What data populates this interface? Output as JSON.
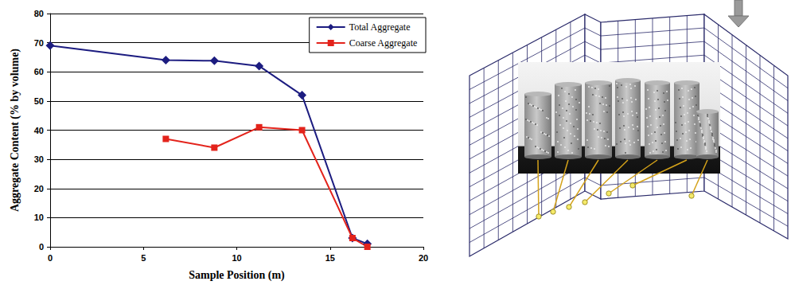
{
  "chart_data": {
    "type": "line",
    "x_label": "Sample Position (m)",
    "y_label": "Aggregate Content (% by volume)",
    "x": [
      0,
      6.2,
      8.8,
      11.2,
      13.5,
      16.2,
      17
    ],
    "series": [
      {
        "name": "Total Aggregate",
        "color": "#1c1c80",
        "marker": "diamond",
        "line_style": "solid",
        "values": [
          69,
          64,
          63.8,
          62,
          52,
          3,
          1
        ]
      },
      {
        "name": "Coarse Aggregate",
        "color": "#e3231b",
        "marker": "square",
        "line_style": "solid",
        "values": [
          null,
          37,
          34,
          41,
          40,
          3,
          0
        ]
      }
    ],
    "xlim": [
      0,
      20
    ],
    "xticks": [
      0,
      5,
      10,
      15,
      20
    ],
    "ylim": [
      0,
      80
    ],
    "yticks": [
      0,
      10,
      20,
      30,
      40,
      50,
      60,
      70,
      80
    ],
    "grid": true,
    "legend": "top-right"
  }
}
